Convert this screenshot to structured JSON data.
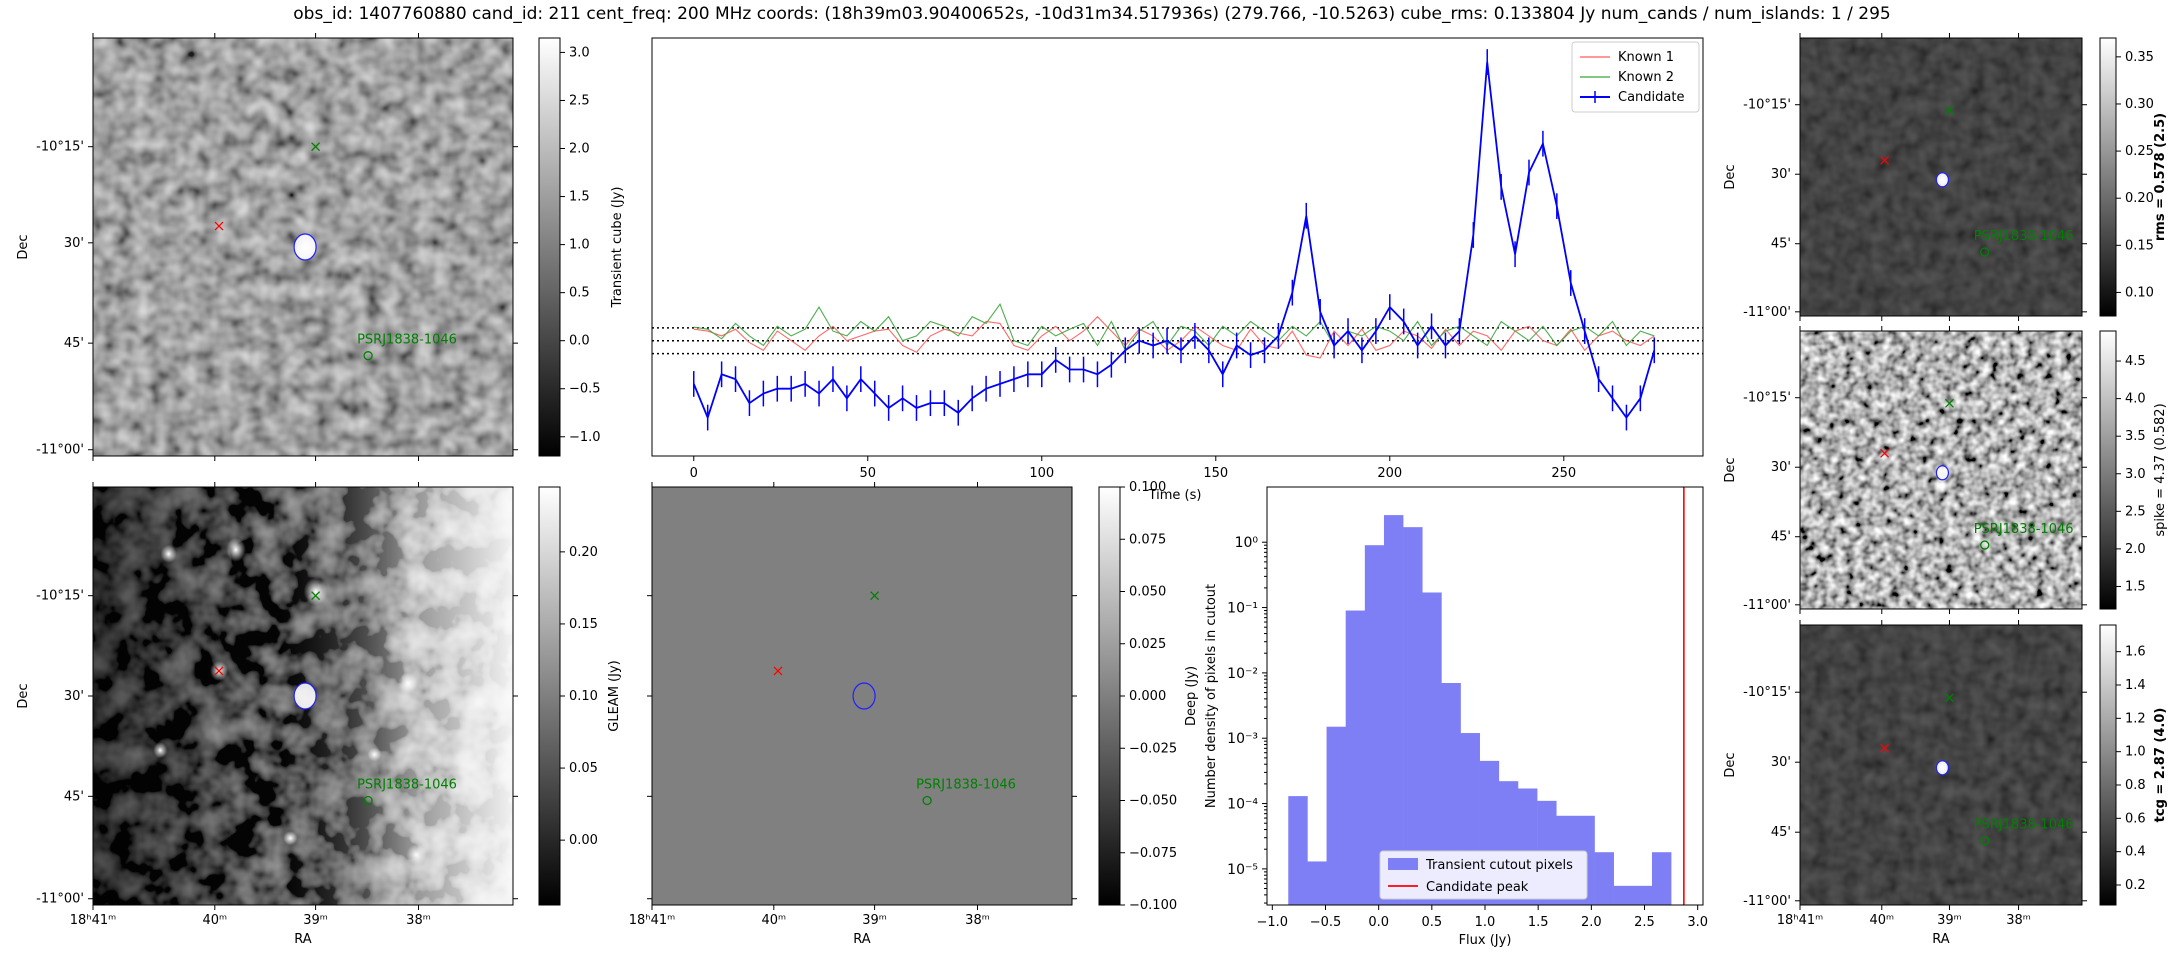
{
  "title": "obs_id: 1407760880 cand_id: 211 cent_freq: 200 MHz coords: (18h39m03.90400652s, -10d31m34.517936s) (279.766, -10.5263) cube_rms: 0.133804 Jy num_cands / num_islands: 1 / 295",
  "colors": {
    "candidate": "#0000ff",
    "known1": "#ff5a5a",
    "known2": "#3aa53a",
    "red": "#ff0000",
    "green": "#008000",
    "hist": "#7f7ff5"
  },
  "cutout_axes": {
    "ra_ticks": [
      "18ʰ41ᵐ",
      "40ᵐ",
      "39ᵐ",
      "38ᵐ"
    ],
    "dec_ticks": [
      "-10°15'",
      "30'",
      "45'",
      "-11°00'"
    ],
    "xlabel": "RA",
    "ylabel": "Dec",
    "source_label": "PSRJ1838-1046"
  },
  "panels": {
    "transient_cube": {
      "colorbar_label": "Transient cube (Jy)",
      "colorbar_ticks": [
        "3.0",
        "2.5",
        "2.0",
        "1.5",
        "1.0",
        "0.5",
        "0.0",
        "−0.5",
        "−1.0"
      ],
      "colorbar_range": [
        -1.2,
        3.15
      ]
    },
    "gleam": {
      "colorbar_label": "GLEAM (Jy)",
      "colorbar_ticks": [
        "0.20",
        "0.15",
        "0.10",
        "0.05",
        "0.00"
      ],
      "colorbar_range": [
        -0.045,
        0.245
      ]
    },
    "deep": {
      "colorbar_label": "Deep (Jy)",
      "colorbar_ticks": [
        "0.100",
        "0.075",
        "0.050",
        "0.025",
        "0.000",
        "−0.025",
        "−0.050",
        "−0.075",
        "−0.100"
      ],
      "colorbar_range": [
        -0.1,
        0.1
      ]
    },
    "rms": {
      "colorbar_label": "rms = 0.578 (2.5)",
      "colorbar_ticks": [
        "0.35",
        "0.30",
        "0.25",
        "0.20",
        "0.15",
        "0.10"
      ],
      "colorbar_range": [
        0.075,
        0.37
      ]
    },
    "spike": {
      "colorbar_label": "spike = 4.37 (0.582)",
      "colorbar_ticks": [
        "4.5",
        "4.0",
        "3.5",
        "3.0",
        "2.5",
        "2.0",
        "1.5"
      ],
      "colorbar_range": [
        1.2,
        4.9
      ]
    },
    "tcg": {
      "colorbar_label": "tcg = 2.87 (4.0)",
      "colorbar_ticks": [
        "1.6",
        "1.4",
        "1.2",
        "1.0",
        "0.8",
        "0.6",
        "0.4",
        "0.2"
      ],
      "colorbar_range": [
        0.08,
        1.76
      ]
    }
  },
  "chart_data": [
    {
      "type": "line",
      "title": "",
      "xlabel": "Time (s)",
      "ylabel": "",
      "xlim": [
        -12,
        290
      ],
      "ylim": [
        -1.2,
        3.15
      ],
      "xticks": [
        0,
        50,
        100,
        150,
        200,
        250
      ],
      "legend_position": "top-right",
      "hlines": [
        -0.134,
        0.0,
        0.134
      ],
      "series": [
        {
          "name": "Known 1",
          "color": "#ff5a5a",
          "x": [
            0,
            4,
            8,
            12,
            16,
            20,
            24,
            28,
            32,
            36,
            40,
            44,
            48,
            52,
            56,
            60,
            64,
            68,
            72,
            76,
            80,
            84,
            88,
            92,
            96,
            100,
            104,
            108,
            112,
            116,
            120,
            124,
            128,
            132,
            136,
            140,
            144,
            148,
            152,
            156,
            160,
            164,
            168,
            172,
            176,
            180,
            184,
            188,
            192,
            196,
            200,
            204,
            208,
            212,
            216,
            220,
            224,
            228,
            232,
            236,
            240,
            244,
            248,
            252,
            256,
            260,
            264,
            268,
            272,
            276
          ],
          "y": [
            0.12,
            0.1,
            0.05,
            0.12,
            -0.02,
            -0.1,
            0.1,
            0.0,
            -0.1,
            0.05,
            0.15,
            0.0,
            0.05,
            0.1,
            0.12,
            -0.05,
            -0.12,
            0.05,
            0.12,
            0.08,
            0.05,
            0.2,
            0.18,
            -0.05,
            -0.1,
            0.05,
            0.15,
            0.0,
            0.1,
            0.25,
            0.1,
            -0.05,
            0.12,
            0.05,
            -0.1,
            0.0,
            0.15,
            0.05,
            -0.05,
            -0.1,
            0.12,
            -0.05,
            -0.08,
            0.1,
            -0.15,
            -0.18,
            0.1,
            -0.05,
            0.12,
            -0.1,
            -0.05,
            0.1,
            0.05,
            -0.08,
            0.12,
            -0.05,
            0.1,
            0.05,
            -0.1,
            0.1,
            0.15,
            0.0,
            -0.05,
            0.12,
            -0.1,
            0.05,
            0.1,
            0.0,
            -0.05,
            0.05
          ]
        },
        {
          "name": "Known 2",
          "color": "#3aa53a",
          "x": [
            0,
            4,
            8,
            12,
            16,
            20,
            24,
            28,
            32,
            36,
            40,
            44,
            48,
            52,
            56,
            60,
            64,
            68,
            72,
            76,
            80,
            84,
            88,
            92,
            96,
            100,
            104,
            108,
            112,
            116,
            120,
            124,
            128,
            132,
            136,
            140,
            144,
            148,
            152,
            156,
            160,
            164,
            168,
            172,
            176,
            180,
            184,
            188,
            192,
            196,
            200,
            204,
            208,
            212,
            216,
            220,
            224,
            228,
            232,
            236,
            240,
            244,
            248,
            252,
            256,
            260,
            264,
            268,
            272,
            276
          ],
          "y": [
            0.14,
            0.12,
            0.02,
            0.18,
            0.05,
            -0.05,
            0.15,
            0.05,
            0.12,
            0.35,
            0.1,
            0.05,
            0.2,
            0.1,
            0.25,
            0.0,
            0.05,
            0.2,
            0.15,
            0.05,
            0.25,
            0.18,
            0.38,
            0.0,
            -0.05,
            0.15,
            0.05,
            0.12,
            0.18,
            -0.05,
            0.2,
            -0.1,
            0.1,
            0.2,
            -0.05,
            0.15,
            0.1,
            -0.05,
            0.15,
            0.05,
            0.2,
            0.1,
            0.0,
            0.15,
            0.05,
            0.2,
            -0.05,
            0.1,
            0.05,
            0.15,
            0.1,
            0.0,
            0.2,
            -0.05,
            0.1,
            0.15,
            0.05,
            -0.05,
            0.2,
            0.1,
            0.0,
            0.15,
            -0.05,
            0.1,
            0.15,
            0.05,
            0.2,
            -0.05,
            0.1,
            0.05
          ]
        },
        {
          "name": "Candidate",
          "color": "#0000ff",
          "errorbars": true,
          "yerr": 0.134,
          "x": [
            0,
            4,
            8,
            12,
            16,
            20,
            24,
            28,
            32,
            36,
            40,
            44,
            48,
            52,
            56,
            60,
            64,
            68,
            72,
            76,
            80,
            84,
            88,
            92,
            96,
            100,
            104,
            108,
            112,
            116,
            120,
            124,
            128,
            132,
            136,
            140,
            144,
            148,
            152,
            156,
            160,
            164,
            168,
            172,
            176,
            180,
            184,
            188,
            192,
            196,
            200,
            204,
            208,
            212,
            216,
            220,
            224,
            228,
            232,
            236,
            240,
            244,
            248,
            252,
            256,
            260,
            264,
            268,
            272,
            276
          ],
          "y": [
            -0.45,
            -0.8,
            -0.35,
            -0.4,
            -0.65,
            -0.55,
            -0.5,
            -0.5,
            -0.45,
            -0.55,
            -0.4,
            -0.6,
            -0.4,
            -0.55,
            -0.7,
            -0.6,
            -0.7,
            -0.65,
            -0.65,
            -0.75,
            -0.6,
            -0.5,
            -0.45,
            -0.4,
            -0.35,
            -0.35,
            -0.2,
            -0.3,
            -0.3,
            -0.35,
            -0.25,
            -0.1,
            0.0,
            -0.05,
            0.0,
            -0.1,
            0.05,
            -0.1,
            -0.35,
            -0.05,
            -0.15,
            -0.1,
            0.05,
            0.5,
            1.3,
            0.3,
            -0.05,
            0.1,
            -0.1,
            0.1,
            0.35,
            0.2,
            -0.05,
            0.15,
            -0.05,
            0.1,
            1.1,
            2.9,
            1.6,
            0.9,
            1.75,
            2.05,
            1.4,
            0.6,
            0.1,
            -0.4,
            -0.6,
            -0.8,
            -0.6,
            -0.1
          ]
        }
      ]
    },
    {
      "type": "bar",
      "title": "",
      "xlabel": "Flux (Jy)",
      "ylabel": "Number density of pixels in cutout",
      "yscale": "log",
      "xlim": [
        -1.05,
        3.05
      ],
      "ylim": [
        2.8e-06,
        7
      ],
      "xticks": [
        -1.0,
        -0.5,
        0.0,
        0.5,
        1.0,
        1.5,
        2.0,
        2.5,
        3.0
      ],
      "yticks": [
        "10⁰",
        "10⁻¹",
        "10⁻²",
        "10⁻³",
        "10⁻⁴",
        "10⁻⁵"
      ],
      "legend_position": "lower-center",
      "series": [
        {
          "name": "Transient cutout pixels",
          "color": "#7f7ff5",
          "bin_edges": [
            -0.85,
            -0.67,
            -0.49,
            -0.31,
            -0.13,
            0.05,
            0.23,
            0.41,
            0.59,
            0.77,
            0.95,
            1.13,
            1.31,
            1.49,
            1.67,
            1.85,
            2.03,
            2.21,
            2.39,
            2.57,
            2.75
          ],
          "values": [
            0.00013,
            1.3e-05,
            0.0015,
            0.09,
            0.9,
            2.6,
            1.7,
            0.17,
            0.007,
            0.0012,
            0.00045,
            0.00022,
            0.00017,
            0.00011,
            6.5e-05,
            6.5e-05,
            1.8e-05,
            5.5e-06,
            5.5e-06,
            1.8e-05
          ]
        }
      ],
      "vlines": [
        {
          "name": "Candidate peak",
          "x": 2.87,
          "color": "#ff0000"
        }
      ]
    }
  ]
}
